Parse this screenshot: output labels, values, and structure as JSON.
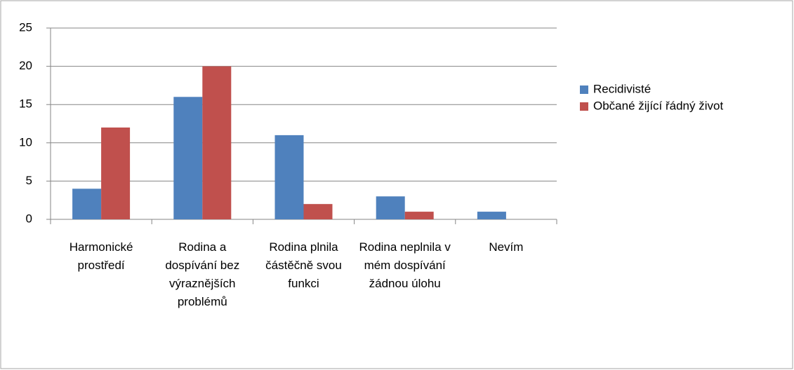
{
  "chart_data": {
    "type": "bar",
    "categories": [
      "Harmonické prostředí",
      "Rodina a dospívání bez výraznějších problémů",
      "Rodina plnila částěčně svou funkci",
      "Rodina neplnila v mém dospívání žádnou úlohu",
      "Nevím"
    ],
    "series": [
      {
        "name": "Recidivisté",
        "color": "#4f81bd",
        "values": [
          4,
          16,
          11,
          3,
          1
        ]
      },
      {
        "name": "Občané žijící řádný život",
        "color": "#c0504d",
        "values": [
          12,
          20,
          2,
          1,
          0
        ]
      }
    ],
    "ylim": [
      0,
      25
    ],
    "yticks": [
      0,
      5,
      10,
      15,
      20,
      25
    ],
    "grid": true,
    "legend": "right"
  }
}
